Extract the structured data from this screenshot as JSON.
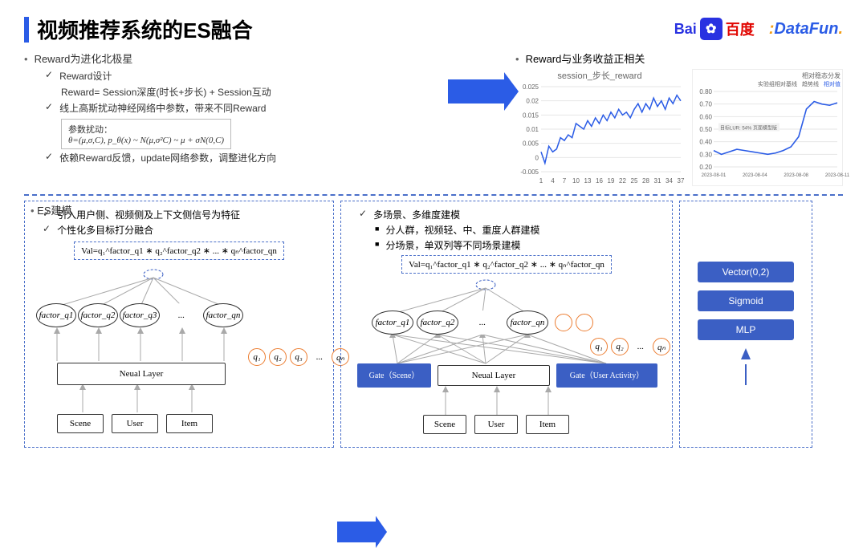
{
  "title": "视频推荐系统的ES融合",
  "logos": {
    "baidu": "Bai",
    "baidu_cn": "百度",
    "datafun_p1": "D",
    "datafun_p2": "ataFun",
    "datafun_dot": "."
  },
  "reward": {
    "heading": "Reward为进化北极星",
    "design": "Reward设计",
    "formula1": "Reward= Session深度(时长+步长) + Session互动",
    "perturb": "线上高斯扰动神经网络中参数，带来不同Reward",
    "box_label": "参数扰动：",
    "box_formula": "θ=(μ,σ,C), p_θ(x) ~ N(μ,σ²C) ~ μ + σN(0,C)",
    "update": "依赖Reward反馈，update网络参数，调整进化方向"
  },
  "chart_section": {
    "heading": "Reward与业务收益正相关",
    "chart1_title": "session_步长_reward",
    "chart2_title": "相对稳态分发",
    "chart1": {
      "ylim": [
        -0.005,
        0.025
      ],
      "yticks": [
        "-0.005",
        "0",
        "0.005",
        "0.01",
        "0.015",
        "0.02",
        "0.025"
      ],
      "xlabels": [
        1,
        4,
        7,
        10,
        13,
        16,
        19,
        22,
        25,
        28,
        31,
        34,
        37
      ],
      "values": [
        0.002,
        -0.002,
        0.004,
        0.002,
        0.003,
        0.007,
        0.006,
        0.008,
        0.007,
        0.012,
        0.011,
        0.01,
        0.013,
        0.011,
        0.014,
        0.012,
        0.015,
        0.013,
        0.016,
        0.014,
        0.017,
        0.015,
        0.016,
        0.014,
        0.017,
        0.019,
        0.016,
        0.019,
        0.017,
        0.021,
        0.018,
        0.02,
        0.017,
        0.021,
        0.019,
        0.022,
        0.02
      ],
      "color": "#2b5ce6",
      "grid_color": "#e6e6e6",
      "bg": "#ffffff"
    },
    "chart2": {
      "legend1": "实验组相对基线",
      "legend2": "趋势线",
      "legend3": "相对值",
      "values": [
        0.33,
        0.3,
        0.32,
        0.34,
        0.33,
        0.32,
        0.31,
        0.3,
        0.31,
        0.33,
        0.36,
        0.44,
        0.66,
        0.72,
        0.7,
        0.69,
        0.71
      ],
      "xdates": [
        "2023-08-01",
        "2023-08-04",
        "2023-08-08",
        "2023-08-11"
      ],
      "yticks": [
        "0.20",
        "0.30",
        "0.40",
        "0.50",
        "0.60",
        "0.70",
        "0.80"
      ],
      "banner": "目标LUR: 54%  页面模型版",
      "color": "#2b5ce6",
      "grid_color": "#e6e6e6"
    }
  },
  "es_label": "ES建模",
  "panel_left": {
    "b1": "引入用户侧、视频侧及上下文侧信号为特征",
    "b2": "个性化多目标打分融合",
    "val": "Val=q₁^factor_q1 ∗ q₂^factor_q2 ∗ ... ∗ qₙ^factor_qn",
    "factors": [
      "factor_q1",
      "factor_q2",
      "factor_q3",
      "...",
      "factor_qn"
    ],
    "qs": [
      "q₁",
      "q₂",
      "q₃",
      "...",
      "qₙ"
    ],
    "neural": "Neual Layer",
    "inputs": [
      "Scene",
      "User",
      "Item"
    ]
  },
  "panel_mid": {
    "b1": "多场景、多维度建模",
    "b2": "分人群，视频轻、中、重度人群建模",
    "b3": "分场景，单双列等不同场景建模",
    "val": "Val=q₁^factor_q1 ∗ q₂^factor_q2 ∗ ... ∗ qₙ^factor_qn",
    "factors": [
      "factor_q1",
      "factor_q2",
      "...",
      "factor_qn"
    ],
    "qs": [
      "q₁",
      "q₂",
      "...",
      "qₙ"
    ],
    "gate1": "Gate（Scene）",
    "neural": "Neual Layer",
    "gate2": "Gate（User Activity）",
    "inputs": [
      "Scene",
      "User",
      "Item"
    ]
  },
  "panel_right": {
    "boxes": [
      "Vector(0,2)",
      "Sigmoid",
      "MLP"
    ]
  },
  "colors": {
    "primary": "#2b5ce6",
    "box_blue": "#3b5fc4",
    "dash": "#4a6fc9",
    "arrow_gray": "#a9a9a9",
    "orange": "#ec7d31"
  }
}
